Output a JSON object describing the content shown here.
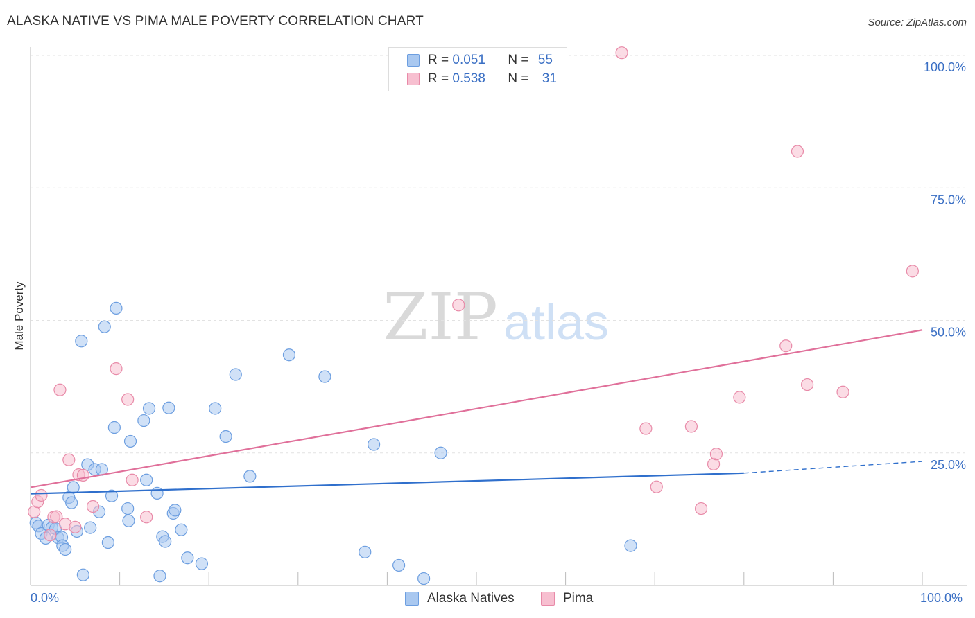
{
  "header": {
    "title": "ALASKA NATIVE VS PIMA MALE POVERTY CORRELATION CHART",
    "source": "Source: ZipAtlas.com"
  },
  "watermark": {
    "zip": "ZIP",
    "atlas": "atlas"
  },
  "legend": {
    "items": [
      {
        "r_label": "R = ",
        "r_value": "0.051",
        "n_label": "N = ",
        "n_value": "55",
        "color": "#a9c8f0",
        "border": "#6c9ee0"
      },
      {
        "r_label": "R = ",
        "r_value": "0.538",
        "n_label": "N = ",
        "n_value": "31",
        "color": "#f7bfd0",
        "border": "#e88aa8"
      }
    ]
  },
  "bottom_legend": {
    "items": [
      {
        "label": "Alaska Natives",
        "color": "#a9c8f0",
        "border": "#6c9ee0"
      },
      {
        "label": "Pima",
        "color": "#f7bfd0",
        "border": "#e88aa8"
      }
    ]
  },
  "chart_data": {
    "type": "scatter",
    "title": "ALASKA NATIVE VS PIMA MALE POVERTY CORRELATION CHART",
    "xlabel": "",
    "ylabel": "Male Poverty",
    "xlim": [
      0,
      100
    ],
    "ylim": [
      0,
      100
    ],
    "x_tick_labels": [
      "0.0%",
      "100.0%"
    ],
    "y_ticks": [
      25,
      50,
      75,
      100
    ],
    "y_tick_labels": [
      "25.0%",
      "50.0%",
      "75.0%",
      "100.0%"
    ],
    "grid": true,
    "series": [
      {
        "name": "Alaska Natives",
        "color": "#a9c8f0",
        "stroke": "#6c9ee0",
        "line_color": "#2f6fcc",
        "trend": {
          "x0": 0,
          "y0": 17.3,
          "x1": 80,
          "y1": 21.2,
          "dashed_to": 100,
          "dashed_y": 23.4
        },
        "points": [
          [
            0.6,
            11.8
          ],
          [
            0.9,
            11.2
          ],
          [
            1.2,
            9.8
          ],
          [
            1.7,
            8.9
          ],
          [
            2.0,
            11.4
          ],
          [
            2.4,
            10.9
          ],
          [
            2.8,
            10.7
          ],
          [
            3.1,
            9.0
          ],
          [
            3.5,
            9.1
          ],
          [
            3.6,
            7.5
          ],
          [
            3.9,
            6.8
          ],
          [
            4.3,
            16.6
          ],
          [
            4.6,
            15.6
          ],
          [
            4.8,
            18.5
          ],
          [
            5.2,
            10.2
          ],
          [
            5.7,
            46.1
          ],
          [
            5.9,
            2.0
          ],
          [
            6.4,
            22.8
          ],
          [
            6.7,
            10.9
          ],
          [
            7.2,
            21.9
          ],
          [
            7.7,
            13.9
          ],
          [
            8.0,
            21.9
          ],
          [
            8.3,
            48.8
          ],
          [
            8.7,
            8.1
          ],
          [
            9.1,
            16.9
          ],
          [
            9.4,
            29.8
          ],
          [
            9.6,
            52.3
          ],
          [
            10.9,
            14.5
          ],
          [
            11.0,
            12.2
          ],
          [
            11.2,
            27.2
          ],
          [
            12.7,
            31.1
          ],
          [
            13.0,
            19.9
          ],
          [
            13.3,
            33.4
          ],
          [
            14.2,
            17.4
          ],
          [
            14.5,
            1.8
          ],
          [
            14.8,
            9.2
          ],
          [
            15.1,
            8.3
          ],
          [
            15.5,
            33.5
          ],
          [
            16.0,
            13.6
          ],
          [
            16.2,
            14.2
          ],
          [
            16.9,
            10.5
          ],
          [
            17.6,
            5.2
          ],
          [
            19.2,
            4.1
          ],
          [
            20.7,
            33.4
          ],
          [
            21.9,
            28.1
          ],
          [
            23.0,
            39.8
          ],
          [
            24.6,
            20.6
          ],
          [
            29.0,
            43.5
          ],
          [
            33.0,
            39.4
          ],
          [
            37.5,
            6.3
          ],
          [
            38.5,
            26.6
          ],
          [
            41.3,
            3.8
          ],
          [
            44.1,
            1.3
          ],
          [
            46.0,
            25.0
          ],
          [
            67.3,
            7.5
          ]
        ]
      },
      {
        "name": "Pima",
        "color": "#f7bfd0",
        "stroke": "#e88aa8",
        "line_color": "#e0709a",
        "trend": {
          "x0": 0,
          "y0": 18.5,
          "x1": 100,
          "y1": 48.2
        },
        "points": [
          [
            0.4,
            13.9
          ],
          [
            0.8,
            15.8
          ],
          [
            1.2,
            17.0
          ],
          [
            2.2,
            9.5
          ],
          [
            2.6,
            12.9
          ],
          [
            2.9,
            13.0
          ],
          [
            3.3,
            36.9
          ],
          [
            3.9,
            11.6
          ],
          [
            4.3,
            23.7
          ],
          [
            5.0,
            11.0
          ],
          [
            5.4,
            20.9
          ],
          [
            5.9,
            20.8
          ],
          [
            7.0,
            14.9
          ],
          [
            9.6,
            40.9
          ],
          [
            10.9,
            35.1
          ],
          [
            11.4,
            19.9
          ],
          [
            13.0,
            12.9
          ],
          [
            48.0,
            52.9
          ],
          [
            66.3,
            100.5
          ],
          [
            69.0,
            29.6
          ],
          [
            70.2,
            18.6
          ],
          [
            74.1,
            30.0
          ],
          [
            75.2,
            14.5
          ],
          [
            76.6,
            22.9
          ],
          [
            76.9,
            24.8
          ],
          [
            79.5,
            35.5
          ],
          [
            84.7,
            45.2
          ],
          [
            86.0,
            81.9
          ],
          [
            87.1,
            37.9
          ],
          [
            91.1,
            36.5
          ],
          [
            98.9,
            59.3
          ]
        ]
      }
    ]
  }
}
